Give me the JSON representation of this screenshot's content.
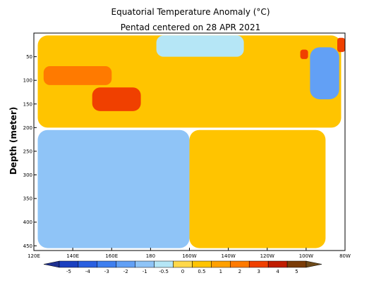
{
  "chart_data": {
    "type": "heatmap",
    "title": "Equatorial Temperature Anomaly (°C)",
    "subtitle": "Pentad centered on 28 APR 2021",
    "ylabel": "Depth (meter)",
    "xlabel": "",
    "x_ticks": [
      "120E",
      "140E",
      "160E",
      "180",
      "160W",
      "140W",
      "120W",
      "100W",
      "80W"
    ],
    "y_ticks": [
      50,
      100,
      150,
      200,
      250,
      300,
      350,
      400,
      450
    ],
    "x_range_lon": [
      120,
      280
    ],
    "ylim": [
      0,
      460
    ],
    "y_inverted": true,
    "colorbar": {
      "tick_labels": [
        "-5",
        "-4",
        "-3",
        "-2",
        "-1",
        "-0.5",
        "0",
        "0.5",
        "1",
        "2",
        "3",
        "4",
        "5"
      ],
      "colors": [
        "#1a3fbf",
        "#2a5fe0",
        "#3f7fef",
        "#62a0f5",
        "#8fc4f7",
        "#b5e6f6",
        "#ffd84a",
        "#ffc400",
        "#ffa000",
        "#ff7a00",
        "#f04000",
        "#c01c00",
        "#7a3c08"
      ]
    },
    "regions": [
      {
        "name": "upper-warm",
        "lon": [
          122,
          278
        ],
        "depth": [
          5,
          200
        ],
        "anomaly": 0.75
      },
      {
        "name": "surface-cool-central",
        "lon": [
          183,
          228
        ],
        "depth": [
          5,
          50
        ],
        "anomaly": -0.3
      },
      {
        "name": "lower-cool-west",
        "lon": [
          122,
          200
        ],
        "depth": [
          205,
          455
        ],
        "anomaly": -0.7
      },
      {
        "name": "lower-warm-east",
        "lon": [
          200,
          270
        ],
        "depth": [
          205,
          455
        ],
        "anomaly": 0.6
      },
      {
        "name": "core-warm",
        "lon": [
          150,
          175
        ],
        "depth": [
          115,
          165
        ],
        "anomaly": 3.2
      },
      {
        "name": "shallow-warm-west",
        "lon": [
          125,
          160
        ],
        "depth": [
          70,
          110
        ],
        "anomaly": 2.2
      },
      {
        "name": "east-cool-surface",
        "lon": [
          262,
          277
        ],
        "depth": [
          30,
          140
        ],
        "anomaly": -1.2
      },
      {
        "name": "east-warm-spot",
        "lon": [
          257,
          261
        ],
        "depth": [
          35,
          55
        ],
        "anomaly": 3.5
      },
      {
        "name": "far-east-warm",
        "lon": [
          276,
          280
        ],
        "depth": [
          10,
          40
        ],
        "anomaly": 3.0
      }
    ]
  }
}
